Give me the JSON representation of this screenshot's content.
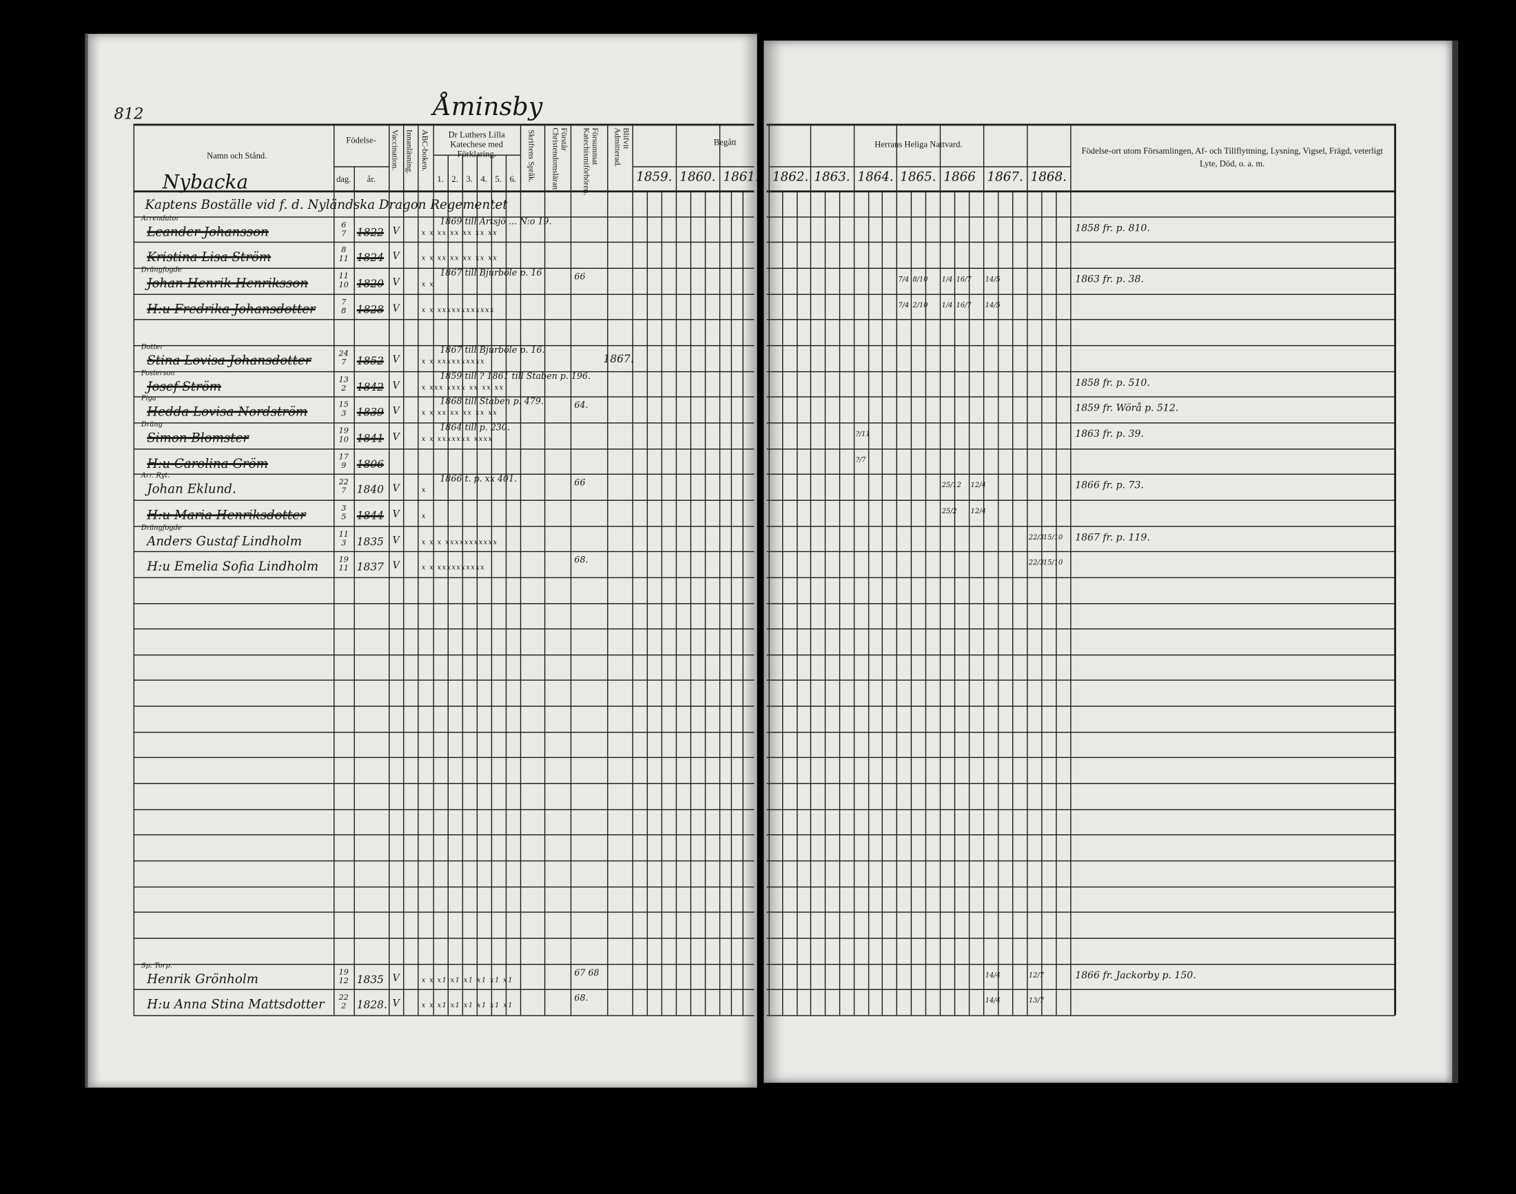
{
  "left_page": {
    "page_number": "812",
    "village": "Åminsby",
    "farm": "Nybacka"
  },
  "header": {
    "name": "Namn och Stånd.",
    "birth": "Födelse-",
    "day": "dag.",
    "year": "år.",
    "vaccination": "Vaccination.",
    "reading": "Innanläsning.",
    "abc": "ABC-boken.",
    "catechism": "Dr Luthers Lilla Katechese med Förklaring.",
    "catechism_cols": [
      "1.",
      "2.",
      "3.",
      "4.",
      "5.",
      "6."
    ],
    "scripture": "Skriftens Språk.",
    "understands": "Förstår Christendomsläran.",
    "missed": "Försummat Katechismiförhören.",
    "admitted": "Blifvit Admitterad.",
    "communion_left": "Begått",
    "communion_right": "Herrans Heliga Nattvard.",
    "years_left": [
      "1859.",
      "1860.",
      "1861."
    ],
    "years_right": [
      "1862.",
      "1863.",
      "1864.",
      "1865.",
      "1866",
      "1867.",
      "1868."
    ],
    "remarks": "Födelse-ort utom Församlingen, Af- och Tillflyttning, Lysning, Vigsel, Frägd, veterligt Lyte, Död, o. a. m."
  },
  "rows": [
    {
      "heading": "Kaptens Boställe vid f. d. Nyländska Dragon Regementet"
    },
    {
      "title": "Arrendator",
      "name": "Leander Johansson",
      "struck": true,
      "day": "6",
      "month": "7",
      "year": "1822",
      "vacc": "V",
      "reading": "x x  xx xx xx xx xx",
      "note": "1869 till Artsjö ... N:o 19.",
      "remark": "1858 fr. p. 810."
    },
    {
      "name": "Kristina Lisa Ström",
      "struck": true,
      "day": "8",
      "month": "11",
      "year": "1824",
      "vacc": "V",
      "reading": "x x  xx xx xx xx xx"
    },
    {
      "title": "Drängfogde",
      "name": "Johan Henrik Henriksson",
      "struck": true,
      "day": "11",
      "month": "10",
      "year": "1820",
      "vacc": "V",
      "reading": "x x",
      "note": "1867 till Bjurböle p. 16",
      "missed": "66",
      "remark": "1863 fr. p. 38.",
      "communion": [
        {
          "year": "1865",
          "sub": 0,
          "text": "7/4"
        },
        {
          "year": "1865",
          "sub": 1,
          "text": "8/10"
        },
        {
          "year": "1866",
          "sub": 0,
          "text": "1/4"
        },
        {
          "year": "1866",
          "sub": 1,
          "text": "16/7"
        },
        {
          "year": "1867",
          "sub": 0,
          "text": "14/5"
        }
      ]
    },
    {
      "name": "H:u Fredrika Johansdotter",
      "struck": true,
      "day": "7",
      "month": "8",
      "year": "1828",
      "vacc": "V",
      "reading": "x x  xxxxxxxxxxxx",
      "communion": [
        {
          "year": "1865",
          "sub": 0,
          "text": "7/4"
        },
        {
          "year": "1865",
          "sub": 1,
          "text": "2/10"
        },
        {
          "year": "1866",
          "sub": 0,
          "text": "1/4"
        },
        {
          "year": "1866",
          "sub": 1,
          "text": "16/7"
        },
        {
          "year": "1867",
          "sub": 0,
          "text": "14/5"
        }
      ]
    },
    {},
    {
      "title": "Dotter",
      "name": "Stina Lovisa Johansdotter",
      "struck": true,
      "day": "24",
      "month": "7",
      "year": "1852",
      "vacc": "V",
      "reading": "x x  xxxxxxxxxx",
      "note": "1867 till Bjurböle p. 16.",
      "admitted": "1867."
    },
    {
      "title": "Fosterson",
      "name": "Josef Ström",
      "struck": true,
      "day": "13",
      "month": "2",
      "year": "1842",
      "vacc": "V",
      "reading": "x  xxx xxxx xx xx xx",
      "note": "1859 till ? 1861 till Staben p. 196.",
      "remark": "1858 fr. p. 510."
    },
    {
      "title": "Piga",
      "name": "Hedda Lovisa Nordström",
      "struck": true,
      "day": "15",
      "month": "3",
      "year": "1839",
      "vacc": "V",
      "reading": "x x xx xx xx xx xx",
      "note": "1868 till Staben p. 479.",
      "missed": "64.",
      "remark": "1859 fr. Wörå p. 512."
    },
    {
      "title": "Dräng",
      "name": "Simon Blomster",
      "struck": true,
      "day": "19",
      "month": "10",
      "year": "1841",
      "vacc": "V",
      "reading": "x x xxxxxxx xxxx",
      "note": "1864 till p. 230.",
      "remark": "1863 fr. p. 39.",
      "communion": [
        {
          "year": "1864",
          "sub": 0,
          "text": "?/11"
        }
      ]
    },
    {
      "name": "H:u Carolina Gröm",
      "struck": true,
      "day": "17",
      "month": "9",
      "year": "1806",
      "communion": [
        {
          "year": "1864",
          "sub": 0,
          "text": "?/7"
        }
      ]
    },
    {
      "title": "Arr. Ryt.",
      "name": "Johan Eklund.",
      "struck": false,
      "day": "22",
      "month": "7",
      "year": "1840",
      "vacc": "V",
      "reading": "x",
      "note": "1866 t. p. xx 401.",
      "missed": "66",
      "remark": "1866 fr. p. 73.",
      "communion": [
        {
          "year": "1866",
          "sub": 0,
          "text": "25/12"
        },
        {
          "year": "1866",
          "sub": 2,
          "text": "12/4"
        }
      ]
    },
    {
      "name": "H:u Maria Henriksdotter",
      "struck": true,
      "day": "3",
      "month": "5",
      "year": "1844",
      "vacc": "V",
      "reading": "x",
      "communion": [
        {
          "year": "1866",
          "sub": 0,
          "text": "25/2"
        },
        {
          "year": "1866",
          "sub": 2,
          "text": "12/4"
        }
      ]
    },
    {
      "title": "Drängfogde",
      "name": "Anders Gustaf Lindholm",
      "struck": false,
      "day": "11",
      "month": "3",
      "year": "1835",
      "vacc": "V",
      "reading": "x x x xxxxxxxxxxx",
      "remark": "1867 fr. p. 119.",
      "communion": [
        {
          "year": "1868",
          "sub": 0,
          "text": "22/3"
        },
        {
          "year": "1868",
          "sub": 1,
          "text": "15/10"
        }
      ]
    },
    {
      "name": "H:u Emelia Sofia Lindholm",
      "struck": false,
      "day": "19",
      "month": "11",
      "year": "1837",
      "vacc": "V",
      "reading": "x x xxxxxxxxxx",
      "missed": "68.",
      "communion": [
        {
          "year": "1868",
          "sub": 0,
          "text": "22/3"
        },
        {
          "year": "1868",
          "sub": 1,
          "text": "15/10"
        }
      ]
    },
    {},
    {},
    {},
    {},
    {},
    {},
    {},
    {},
    {},
    {},
    {},
    {},
    {},
    {},
    {},
    {
      "title": "Sp. Torp.",
      "name": "Henrik Grönholm",
      "struck": false,
      "day": "19",
      "month": "12",
      "year": "1835",
      "vacc": "V",
      "reading": "x x x1 x1 x1 x1 x1 x1",
      "missed": "67 68",
      "remark": "1866 fr. Jackorby p. 150.",
      "communion": [
        {
          "year": "1867",
          "sub": 0,
          "text": "14/4"
        },
        {
          "year": "1868",
          "sub": 0,
          "text": "12/7"
        }
      ]
    },
    {
      "name": "H:u Anna Stina Mattsdotter",
      "struck": false,
      "day": "22",
      "month": "2",
      "year": "1828.",
      "vacc": "V",
      "reading": "x x x1 x1 x1 x1 x1 x1",
      "missed": "68.",
      "communion": [
        {
          "year": "1867",
          "sub": 0,
          "text": "14/4"
        },
        {
          "year": "1868",
          "sub": 0,
          "text": "13/7"
        }
      ]
    }
  ],
  "colors": {
    "background": "#000000",
    "paper": "#e9e9e6",
    "ink": "#1a1a1a"
  }
}
